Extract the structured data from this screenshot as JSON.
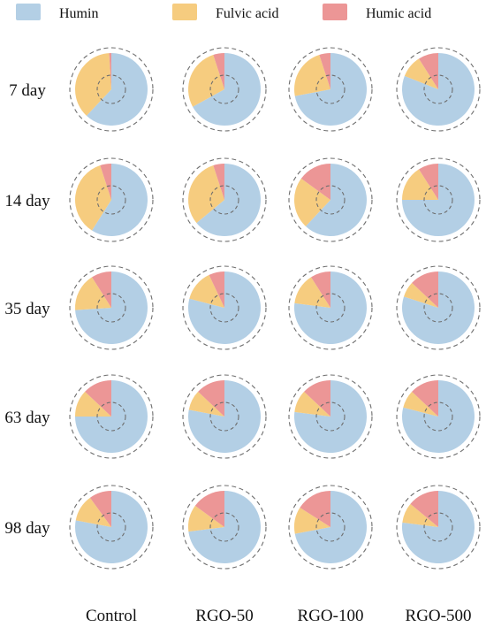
{
  "chart_data": {
    "type": "pie",
    "series_names": [
      "Humin",
      "Fulvic acid",
      "Humic acid"
    ],
    "colors": {
      "Humin": "#b3cfe5",
      "Fulvic acid": "#f6cc7f",
      "Humic acid": "#ec9696"
    },
    "columns": [
      "Control",
      "RGO-50",
      "RGO-100",
      "RGO-500"
    ],
    "rows": [
      "7 day",
      "14 day",
      "35 day",
      "63 day",
      "98 day"
    ],
    "unit": "percent",
    "values": [
      [
        {
          "Humin": 62,
          "Fulvic acid": 37,
          "Humic acid": 1
        },
        {
          "Humin": 67,
          "Fulvic acid": 28,
          "Humic acid": 5
        },
        {
          "Humin": 72,
          "Fulvic acid": 23,
          "Humic acid": 5
        },
        {
          "Humin": 81,
          "Fulvic acid": 10,
          "Humic acid": 9
        }
      ],
      [
        {
          "Humin": 59,
          "Fulvic acid": 36,
          "Humic acid": 5
        },
        {
          "Humin": 64,
          "Fulvic acid": 31,
          "Humic acid": 5
        },
        {
          "Humin": 62,
          "Fulvic acid": 23,
          "Humic acid": 15
        },
        {
          "Humin": 75,
          "Fulvic acid": 16,
          "Humic acid": 9
        }
      ],
      [
        {
          "Humin": 74,
          "Fulvic acid": 17,
          "Humic acid": 9
        },
        {
          "Humin": 79,
          "Fulvic acid": 14,
          "Humic acid": 7
        },
        {
          "Humin": 77,
          "Fulvic acid": 14,
          "Humic acid": 9
        },
        {
          "Humin": 80,
          "Fulvic acid": 7,
          "Humic acid": 13
        }
      ],
      [
        {
          "Humin": 75,
          "Fulvic acid": 12,
          "Humic acid": 13
        },
        {
          "Humin": 78,
          "Fulvic acid": 9,
          "Humic acid": 13
        },
        {
          "Humin": 77,
          "Fulvic acid": 10,
          "Humic acid": 13
        },
        {
          "Humin": 79,
          "Fulvic acid": 8,
          "Humic acid": 13
        }
      ],
      [
        {
          "Humin": 78,
          "Fulvic acid": 12,
          "Humic acid": 10
        },
        {
          "Humin": 73,
          "Fulvic acid": 12,
          "Humic acid": 15
        },
        {
          "Humin": 72,
          "Fulvic acid": 12,
          "Humic acid": 16
        },
        {
          "Humin": 77,
          "Fulvic acid": 9,
          "Humic acid": 14
        }
      ]
    ],
    "legend_position": "top",
    "grid": false
  }
}
